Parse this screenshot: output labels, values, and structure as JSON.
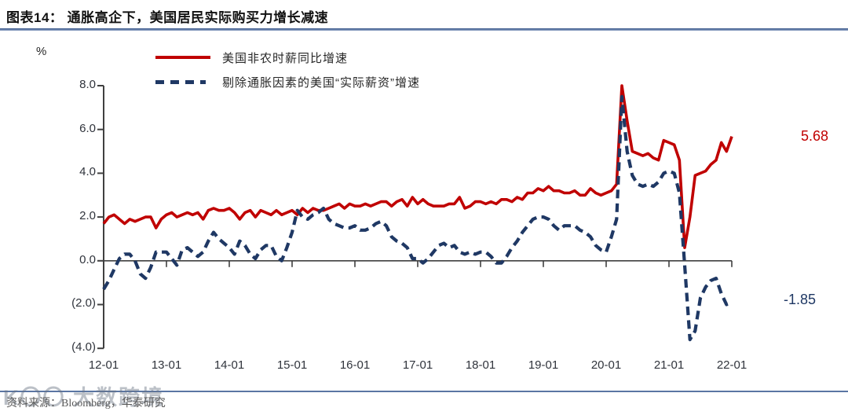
{
  "title": "图表14：  通胀高企下，美国居民实际购买力增长减速",
  "percent_label": "%",
  "legend": [
    {
      "label": "美国非农时薪同比增速",
      "color": "#C00000",
      "style": "solid"
    },
    {
      "label": "剔除通胀因素的美国“实际薪资”增速",
      "color": "#1F3864",
      "style": "dashed"
    }
  ],
  "end_labels": {
    "nominal": "5.68",
    "real": "-1.85"
  },
  "source": "资料来源：Bloomberg，华泰研究",
  "watermark": "K〇〇 大数跨境",
  "colors": {
    "nominal_line": "#C00000",
    "real_line": "#1F3864",
    "axis": "#404040",
    "title_rule": "#4a6593"
  },
  "chart_data": {
    "type": "line",
    "title": "通胀高企下，美国居民实际购买力增长减速",
    "xlabel": "",
    "ylabel": "%",
    "freq": "monthly",
    "x_start": "2012-01",
    "x_end": "2022-01",
    "x_tick_labels": [
      "12-01",
      "13-01",
      "14-01",
      "15-01",
      "16-01",
      "17-01",
      "18-01",
      "19-01",
      "20-01",
      "21-01",
      "22-01"
    ],
    "y_ticks": [
      8,
      6,
      4,
      2,
      0,
      -2,
      -4
    ],
    "y_tick_labels": [
      "8.0",
      "6.0",
      "4.0",
      "2.0",
      "0.0",
      "(2.0)",
      "(4.0)"
    ],
    "ylim": [
      -4,
      8
    ],
    "grid": false,
    "legend_position": "top-left",
    "series": [
      {
        "name": "美国非农时薪同比增速",
        "color": "#C00000",
        "dash": false,
        "last_value": 5.68,
        "values": [
          1.7,
          2.0,
          2.1,
          1.9,
          1.7,
          1.9,
          1.8,
          1.9,
          2.0,
          2.0,
          1.5,
          1.9,
          2.1,
          2.2,
          2.0,
          2.1,
          2.2,
          2.1,
          2.2,
          1.9,
          2.3,
          2.4,
          2.3,
          2.3,
          2.4,
          2.2,
          1.9,
          2.2,
          2.3,
          2.0,
          2.3,
          2.2,
          2.1,
          2.3,
          2.1,
          2.2,
          2.3,
          2.1,
          2.4,
          2.2,
          2.4,
          2.3,
          2.3,
          2.4,
          2.5,
          2.6,
          2.4,
          2.6,
          2.5,
          2.5,
          2.6,
          2.5,
          2.6,
          2.7,
          2.7,
          2.5,
          2.7,
          2.8,
          2.5,
          2.9,
          2.6,
          2.8,
          2.6,
          2.5,
          2.5,
          2.5,
          2.6,
          2.6,
          2.9,
          2.4,
          2.5,
          2.7,
          2.7,
          2.6,
          2.7,
          2.6,
          2.8,
          2.8,
          2.7,
          2.9,
          2.8,
          3.1,
          3.1,
          3.3,
          3.2,
          3.4,
          3.2,
          3.2,
          3.1,
          3.1,
          3.2,
          3.0,
          3.0,
          3.3,
          3.1,
          3.0,
          3.1,
          3.2,
          3.5,
          8.0,
          6.4,
          5.0,
          4.9,
          4.8,
          4.9,
          4.7,
          4.6,
          5.5,
          5.4,
          5.3,
          4.6,
          0.6,
          2.0,
          3.9,
          4.0,
          4.1,
          4.4,
          4.6,
          5.4,
          5.0,
          5.68
        ]
      },
      {
        "name": "剔除通胀因素的美国“实际薪资”增速",
        "color": "#1F3864",
        "dash": true,
        "last_value": -1.85,
        "values": [
          -1.3,
          -0.9,
          -0.4,
          0.1,
          0.3,
          0.3,
          0.0,
          -0.6,
          -0.8,
          -0.3,
          0.4,
          0.4,
          0.4,
          0.1,
          -0.2,
          0.5,
          0.6,
          0.4,
          0.2,
          0.4,
          0.9,
          1.3,
          1.0,
          0.8,
          0.6,
          0.3,
          0.9,
          0.7,
          0.3,
          0.1,
          0.5,
          0.7,
          0.7,
          0.2,
          0.0,
          0.6,
          1.3,
          2.3,
          2.0,
          1.9,
          2.1,
          2.2,
          2.4,
          1.9,
          1.7,
          1.6,
          1.5,
          1.5,
          1.6,
          1.4,
          1.4,
          1.5,
          1.7,
          1.8,
          1.6,
          1.1,
          0.9,
          0.8,
          0.6,
          0.1,
          0.1,
          -0.1,
          0.1,
          0.4,
          0.7,
          0.8,
          0.6,
          0.7,
          0.4,
          0.3,
          0.4,
          0.3,
          0.4,
          0.4,
          0.2,
          -0.1,
          -0.1,
          0.2,
          0.6,
          0.9,
          1.3,
          1.6,
          1.9,
          2.0,
          2.0,
          1.9,
          1.6,
          1.4,
          1.6,
          1.6,
          1.6,
          1.4,
          1.3,
          1.1,
          0.7,
          0.5,
          0.4,
          1.1,
          1.9,
          7.5,
          5.0,
          3.9,
          3.5,
          3.4,
          3.5,
          3.4,
          3.6,
          4.0,
          4.1,
          4.0,
          3.1,
          -0.2,
          -3.6,
          -3.2,
          -1.7,
          -1.2,
          -0.9,
          -0.8,
          -1.5,
          -2.0,
          -1.85
        ]
      }
    ]
  }
}
